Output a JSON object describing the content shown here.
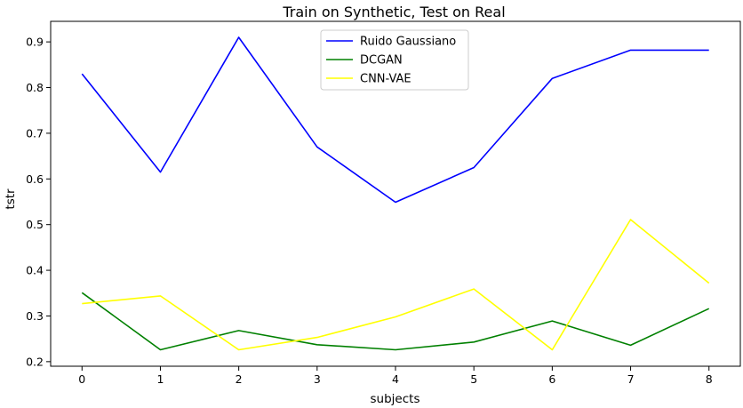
{
  "chart_data": {
    "type": "line",
    "title": "Train on Synthetic, Test on Real",
    "xlabel": "subjects",
    "ylabel": "tstr",
    "x": [
      0,
      1,
      2,
      3,
      4,
      5,
      6,
      7,
      8
    ],
    "xlim": [
      -0.4,
      8.4
    ],
    "ylim": [
      0.19,
      0.945
    ],
    "xticks": [
      0,
      1,
      2,
      3,
      4,
      5,
      6,
      7,
      8
    ],
    "yticks": [
      0.2,
      0.3,
      0.4,
      0.5,
      0.6,
      0.7,
      0.8,
      0.9
    ],
    "ytick_labels": [
      "0.2",
      "0.3",
      "0.4",
      "0.5",
      "0.6",
      "0.7",
      "0.8",
      "0.9"
    ],
    "grid": false,
    "legend_position": "upper-center",
    "series": [
      {
        "name": "Ruido Gaussiano",
        "color": "#0000ff",
        "values": [
          0.83,
          0.615,
          0.91,
          0.67,
          0.549,
          0.625,
          0.82,
          0.882,
          0.882
        ]
      },
      {
        "name": "DCGAN",
        "color": "#008000",
        "values": [
          0.351,
          0.226,
          0.268,
          0.237,
          0.226,
          0.243,
          0.289,
          0.236,
          0.316
        ]
      },
      {
        "name": "CNN-VAE",
        "color": "#ffff00",
        "values": [
          0.327,
          0.344,
          0.226,
          0.253,
          0.298,
          0.359,
          0.226,
          0.511,
          0.372
        ]
      }
    ]
  }
}
